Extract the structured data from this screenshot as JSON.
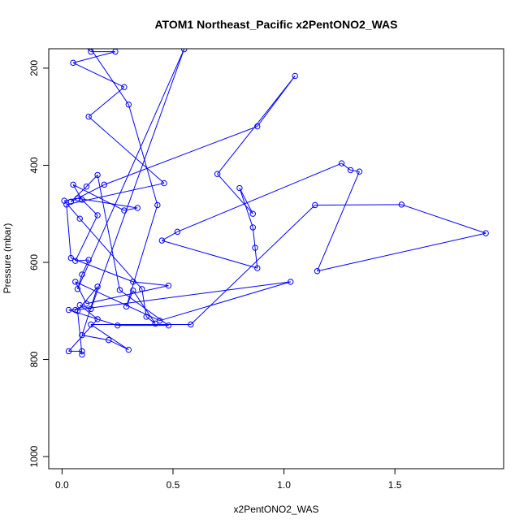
{
  "chart_data": {
    "type": "line",
    "title": "ATOM1 Northeast_Pacific x2PentONO2_WAS",
    "xlabel": "x2PentONO2_WAS",
    "ylabel": "Pressure (mbar)",
    "xlim": [
      -0.06,
      1.99
    ],
    "ylim": [
      1025,
      160
    ],
    "y_reversed": true,
    "xticks": [
      "0.0",
      "0.5",
      "1.0",
      "1.5"
    ],
    "xtick_values": [
      0,
      0.5,
      1.0,
      1.5
    ],
    "yticks": [
      "200",
      "400",
      "600",
      "800",
      "1000"
    ],
    "ytick_values": [
      200,
      400,
      600,
      800,
      1000
    ],
    "grid": false,
    "legend": "none",
    "series_color": "#0000ff",
    "series": [
      {
        "marker": "open-circle",
        "points": [
          [
            0.09,
            783
          ],
          [
            0.03,
            783
          ],
          [
            0.16,
            717
          ],
          [
            0.08,
            688
          ],
          [
            0.13,
            696
          ],
          [
            0.55,
            161
          ],
          [
            0.07,
            655
          ],
          [
            0.09,
            625
          ],
          [
            0.12,
            595
          ],
          [
            0.06,
            597
          ],
          [
            0.16,
            503
          ],
          [
            0.09,
            471
          ],
          [
            0.05,
            440
          ],
          [
            0.28,
            493
          ],
          [
            0.34,
            488
          ],
          [
            0.07,
            468
          ],
          [
            0.01,
            473
          ],
          [
            0.08,
            510
          ],
          [
            0.36,
            655
          ],
          [
            0.38,
            712
          ],
          [
            0.42,
            726
          ],
          [
            0.32,
            658
          ],
          [
            0.29,
            691
          ],
          [
            0.43,
            482
          ],
          [
            0.3,
            275
          ],
          [
            0.07,
            120
          ],
          [
            0.04,
            132
          ],
          [
            0.13,
            166
          ],
          [
            0.24,
            166
          ],
          [
            0.05,
            189
          ],
          [
            0.28,
            239
          ],
          [
            0.12,
            300
          ],
          [
            0.46,
            437
          ],
          [
            0.02,
            481
          ],
          [
            0.04,
            591
          ],
          [
            0.32,
            640
          ],
          [
            0.48,
            648
          ],
          [
            0.11,
            685
          ],
          [
            0.06,
            640
          ],
          [
            0.44,
            720
          ],
          [
            1.03,
            640
          ],
          [
            0.06,
            698
          ],
          [
            0.03,
            698
          ],
          [
            0.25,
            730
          ],
          [
            0.48,
            730
          ],
          [
            0.26,
            657
          ],
          [
            0.16,
            420
          ],
          [
            0.11,
            444
          ],
          [
            0.04,
            475
          ],
          [
            0.19,
            440
          ],
          [
            0.88,
            320
          ],
          [
            1.05,
            216
          ],
          [
            0.7,
            418
          ],
          [
            0.86,
            500
          ],
          [
            0.8,
            447
          ],
          [
            0.86,
            528
          ],
          [
            0.87,
            570
          ],
          [
            0.88,
            612
          ],
          [
            0.45,
            555
          ],
          [
            0.52,
            537
          ],
          [
            1.26,
            396
          ],
          [
            1.3,
            410
          ],
          [
            1.34,
            413
          ],
          [
            1.15,
            618
          ],
          [
            1.91,
            540
          ],
          [
            1.53,
            481
          ],
          [
            1.14,
            482
          ],
          [
            0.58,
            728
          ],
          [
            0.13,
            728
          ],
          [
            0.3,
            780
          ],
          [
            0.21,
            760
          ],
          [
            0.09,
            750
          ],
          [
            0.16,
            650
          ],
          [
            0.07,
            700
          ],
          [
            0.09,
            790
          ]
        ]
      }
    ]
  }
}
